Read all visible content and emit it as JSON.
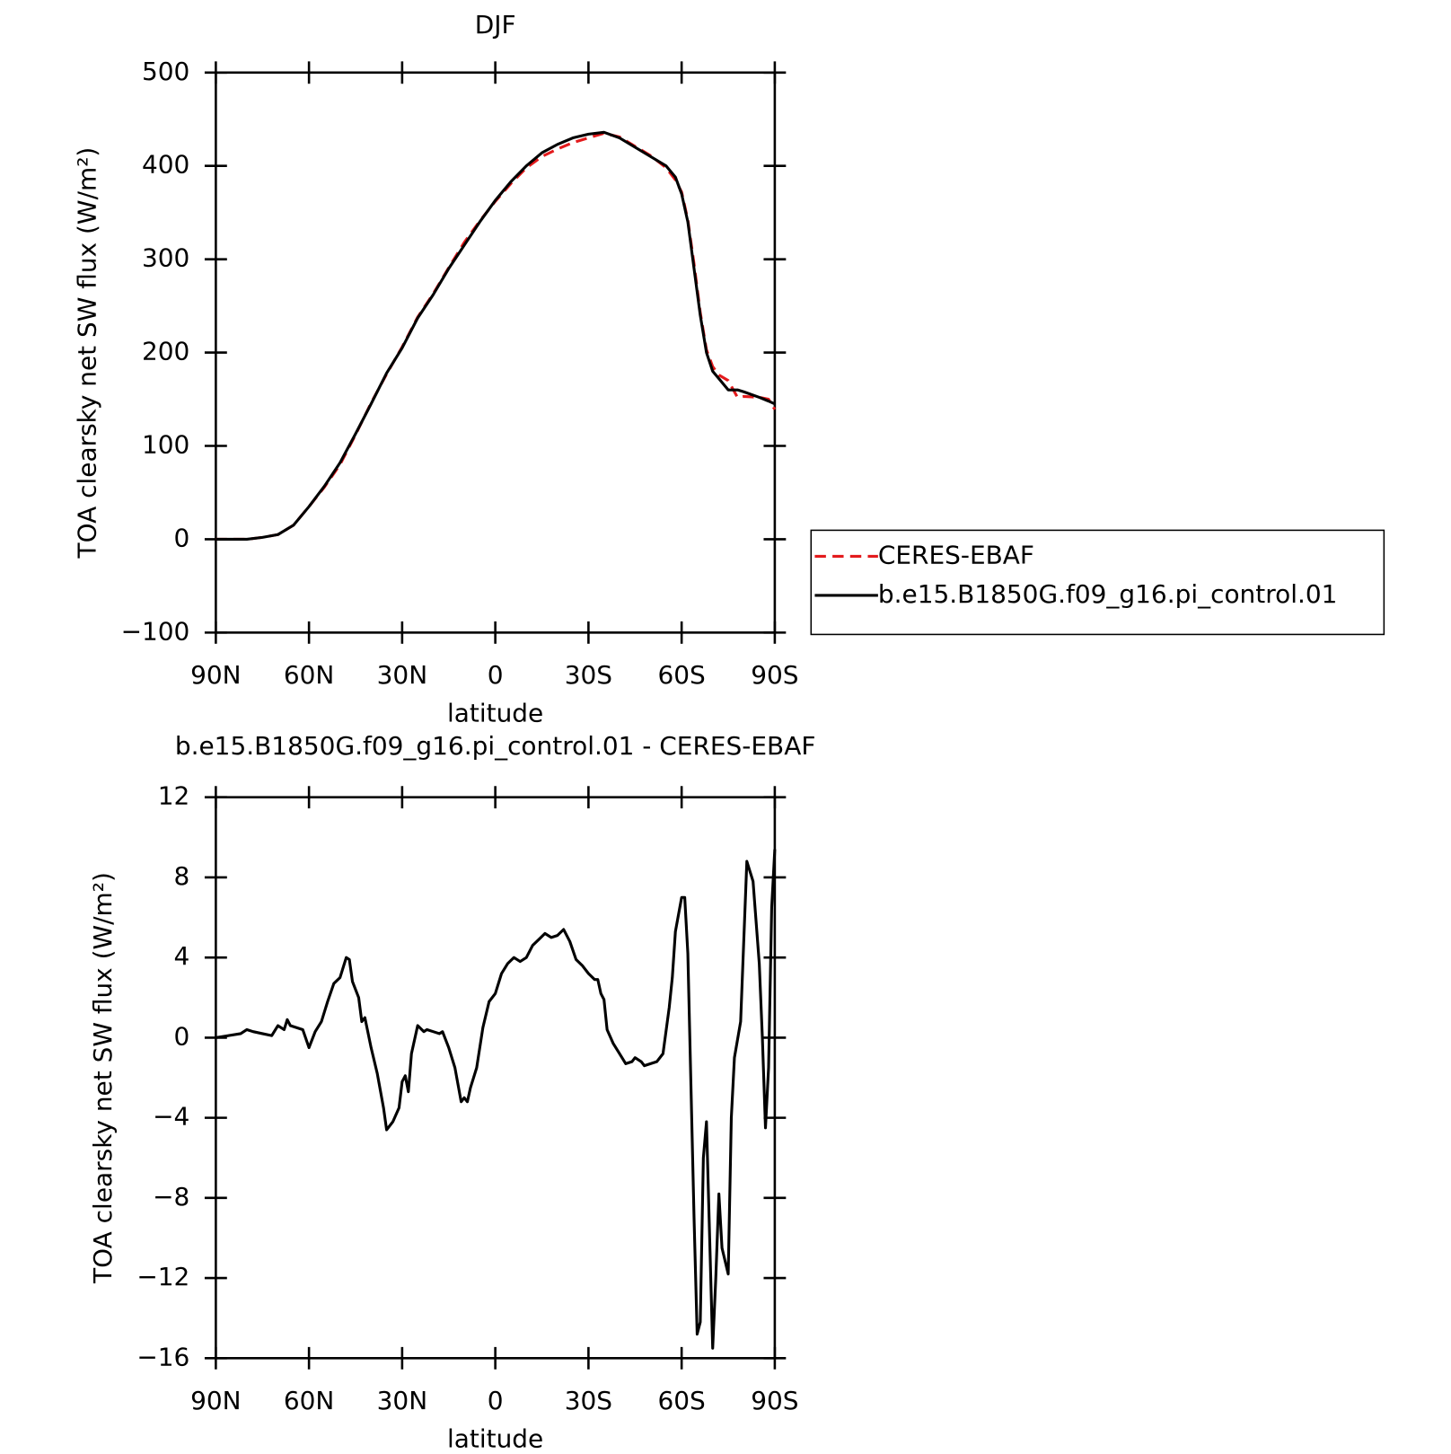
{
  "chart_data": [
    {
      "type": "line",
      "title": "DJF",
      "x_label": "latitude",
      "y_label": "TOA clearsky net SW flux (W/m²)",
      "x": [
        90,
        85,
        80,
        75,
        70,
        65,
        60,
        55,
        50,
        45,
        40,
        35,
        30,
        25,
        20,
        15,
        10,
        5,
        0,
        -5,
        -10,
        -15,
        -20,
        -25,
        -30,
        -35,
        -40,
        -45,
        -50,
        -55,
        -58,
        -60,
        -62,
        -64,
        -66,
        -68,
        -70,
        -72,
        -75,
        -78,
        -80,
        -85,
        -88,
        -90
      ],
      "series": [
        {
          "name": "CERES-EBAF",
          "color": "#e31a1c",
          "line_style": "dashed",
          "values": [
            0,
            0,
            0,
            2,
            5,
            15,
            35,
            56,
            80,
            112,
            146,
            177,
            206,
            238,
            263,
            291,
            318,
            341,
            362,
            381,
            398,
            410,
            418,
            425,
            430,
            435,
            431,
            421,
            411,
            398,
            385,
            372,
            342,
            295,
            243,
            203,
            185,
            176,
            170,
            152,
            153,
            152,
            150,
            139
          ]
        },
        {
          "name": "b.e15.B1850G.f09_g16.pi_control.01",
          "color": "#000000",
          "line_style": "solid",
          "values": [
            0,
            0,
            0,
            2,
            5,
            15,
            35,
            57,
            82,
            113,
            145,
            178,
            205,
            237,
            262,
            290,
            315,
            340,
            363,
            383,
            400,
            414,
            423,
            430,
            434,
            436,
            430,
            420,
            410,
            400,
            388,
            370,
            340,
            290,
            240,
            200,
            180,
            172,
            160,
            160,
            158,
            152,
            148,
            145
          ]
        }
      ],
      "xlim": [
        90,
        -90
      ],
      "xticks": [
        {
          "value": 90,
          "label": "90N"
        },
        {
          "value": 60,
          "label": "60N"
        },
        {
          "value": 30,
          "label": "30N"
        },
        0,
        {
          "value": -30,
          "label": "30S"
        },
        {
          "value": -60,
          "label": "60S"
        },
        {
          "value": -90,
          "label": "90S"
        }
      ],
      "ylim": [
        -100,
        500
      ],
      "yticks": [
        {
          "value": -100,
          "label": "−100"
        },
        0,
        100,
        200,
        300,
        400,
        500
      ],
      "legend": "right"
    },
    {
      "type": "line",
      "title": "b.e15.B1850G.f09_g16.pi_control.01 - CERES-EBAF",
      "x_label": "latitude",
      "y_label": "TOA clearsky net SW flux (W/m²)",
      "x": [
        90,
        82,
        80,
        78,
        75,
        72,
        70,
        68,
        67,
        66,
        64,
        62,
        60,
        58,
        56,
        54,
        52,
        50,
        48,
        47,
        46,
        44,
        43,
        42,
        40,
        38,
        36,
        35,
        33,
        31,
        30,
        29,
        28,
        27,
        25,
        23,
        22,
        20,
        18,
        17,
        15,
        13,
        11,
        10,
        9,
        8,
        6,
        4,
        2,
        0,
        -2,
        -4,
        -6,
        -8,
        -10,
        -12,
        -14,
        -16,
        -18,
        -20,
        -22,
        -24,
        -26,
        -28,
        -30,
        -32,
        -33,
        -34,
        -35,
        -36,
        -38,
        -40,
        -42,
        -44,
        -45,
        -47,
        -48,
        -50,
        -52,
        -54,
        -56,
        -57,
        -58,
        -60,
        -61,
        -62,
        -64,
        -65,
        -66,
        -67,
        -68,
        -70,
        -71,
        -72,
        -73,
        -75,
        -76,
        -77,
        -79,
        -81,
        -83,
        -85,
        -86,
        -87,
        -88,
        -89,
        -90
      ],
      "series": [
        {
          "name": "b.e15.B1850G.f09_g16.pi_control.01 - CERES-EBAF",
          "color": "#000000",
          "values": [
            0,
            0.2,
            0.4,
            0.3,
            0.2,
            0.1,
            0.6,
            0.4,
            0.9,
            0.6,
            0.5,
            0.4,
            -0.5,
            0.3,
            0.8,
            1.8,
            2.7,
            3.0,
            4.0,
            3.9,
            2.8,
            2.0,
            0.8,
            1.0,
            -0.5,
            -1.8,
            -3.5,
            -4.6,
            -4.2,
            -3.5,
            -2.2,
            -1.9,
            -2.7,
            -0.8,
            0.6,
            0.3,
            0.4,
            0.3,
            0.2,
            0.3,
            -0.5,
            -1.5,
            -3.2,
            -3.0,
            -3.2,
            -2.5,
            -1.5,
            0.5,
            1.8,
            2.2,
            3.2,
            3.7,
            4.0,
            3.8,
            4.0,
            4.6,
            4.9,
            5.2,
            5.0,
            5.1,
            5.4,
            4.8,
            3.9,
            3.6,
            3.2,
            2.9,
            2.9,
            2.2,
            1.9,
            0.4,
            -0.3,
            -0.8,
            -1.3,
            -1.2,
            -1.0,
            -1.2,
            -1.4,
            -1.3,
            -1.2,
            -0.8,
            1.5,
            3.0,
            5.3,
            7.0,
            7.0,
            4.2,
            -9.0,
            -14.8,
            -14.2,
            -6.0,
            -4.2,
            -15.5,
            -12.0,
            -7.8,
            -10.5,
            -11.8,
            -4.0,
            -1.0,
            0.8,
            8.8,
            7.8,
            3.7,
            0,
            -4.5,
            -1.5,
            6.5,
            9.4
          ]
        }
      ],
      "xlim": [
        90,
        -90
      ],
      "xticks": [
        {
          "value": 90,
          "label": "90N"
        },
        {
          "value": 60,
          "label": "60N"
        },
        {
          "value": 30,
          "label": "30N"
        },
        0,
        {
          "value": -30,
          "label": "30S"
        },
        {
          "value": -60,
          "label": "60S"
        },
        {
          "value": -90,
          "label": "90S"
        }
      ],
      "ylim": [
        -16,
        12
      ],
      "yticks": [
        {
          "value": -16,
          "label": "−16"
        },
        {
          "value": -12,
          "label": "−12"
        },
        {
          "value": -8,
          "label": "−8"
        },
        {
          "value": -4,
          "label": "−4"
        },
        0,
        4,
        8,
        12
      ]
    }
  ]
}
